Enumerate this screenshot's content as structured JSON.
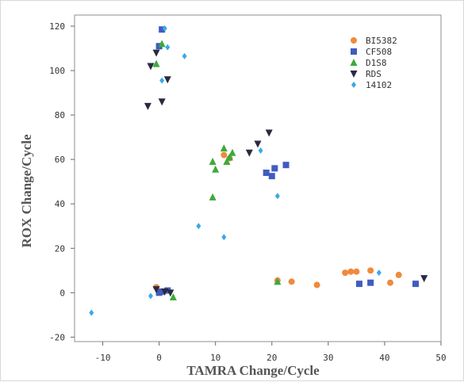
{
  "chart_data": {
    "type": "scatter",
    "title": "",
    "xlabel": "TAMRA Change/Cycle",
    "ylabel": "ROX Change/Cycle",
    "xlim": [
      -15,
      50
    ],
    "ylim": [
      -22,
      125
    ],
    "xticks": [
      -10,
      0,
      10,
      20,
      30,
      40,
      50
    ],
    "yticks": [
      -20,
      0,
      20,
      40,
      60,
      80,
      100,
      120
    ],
    "xtick_labels": [
      "-10",
      "0",
      "10",
      "20",
      "30",
      "40",
      "50"
    ],
    "ytick_labels": [
      "-20",
      "0",
      "20",
      "40",
      "60",
      "80",
      "100",
      "120"
    ],
    "grid": false,
    "legend_position": "top-right",
    "series": [
      {
        "name": "BI5382",
        "marker": "circle",
        "color": "#f08a3c",
        "points": [
          [
            -0.5,
            2.5
          ],
          [
            11.5,
            62
          ],
          [
            12.5,
            60.5
          ],
          [
            21,
            5.5
          ],
          [
            23.5,
            5
          ],
          [
            28,
            3.5
          ],
          [
            33,
            9
          ],
          [
            34,
            9.5
          ],
          [
            35,
            9.5
          ],
          [
            37.5,
            10
          ],
          [
            41,
            4.5
          ],
          [
            42.5,
            8
          ]
        ]
      },
      {
        "name": "CF508",
        "marker": "square",
        "color": "#3f5cc0",
        "points": [
          [
            0,
            111
          ],
          [
            0.5,
            118.5
          ],
          [
            1.5,
            1
          ],
          [
            0,
            0
          ],
          [
            0.5,
            0.5
          ],
          [
            19,
            54
          ],
          [
            20,
            52.5
          ],
          [
            20.5,
            56
          ],
          [
            22.5,
            57.5
          ],
          [
            35.5,
            4
          ],
          [
            37.5,
            4.5
          ],
          [
            45.5,
            4
          ]
        ]
      },
      {
        "name": "D1S8",
        "marker": "triangle-up",
        "color": "#3caa3c",
        "points": [
          [
            -0.5,
            103
          ],
          [
            0.5,
            112
          ],
          [
            9.5,
            43
          ],
          [
            9.5,
            59
          ],
          [
            10,
            55.5
          ],
          [
            11.5,
            65
          ],
          [
            12,
            59
          ],
          [
            12.5,
            61
          ],
          [
            13,
            63
          ],
          [
            2.5,
            -2
          ],
          [
            21,
            5
          ]
        ]
      },
      {
        "name": "RDS",
        "marker": "triangle-down",
        "color": "#2a2a40",
        "points": [
          [
            -1.5,
            102
          ],
          [
            -0.5,
            108
          ],
          [
            0.5,
            86
          ],
          [
            1.5,
            96
          ],
          [
            -2,
            84
          ],
          [
            -0.5,
            1.5
          ],
          [
            1,
            0.5
          ],
          [
            2,
            0
          ],
          [
            16,
            63
          ],
          [
            17.5,
            67
          ],
          [
            19.5,
            72
          ],
          [
            47,
            6.5
          ]
        ]
      },
      {
        "name": "14102",
        "marker": "diamond",
        "color": "#3aa8e8",
        "points": [
          [
            1,
            119
          ],
          [
            1.5,
            110.5
          ],
          [
            4.5,
            106.5
          ],
          [
            0.5,
            95.5
          ],
          [
            7,
            30
          ],
          [
            11.5,
            25
          ],
          [
            18,
            64
          ],
          [
            21,
            43.5
          ],
          [
            -1.5,
            -1.5
          ],
          [
            -12,
            -9
          ],
          [
            39,
            9
          ]
        ]
      }
    ]
  }
}
